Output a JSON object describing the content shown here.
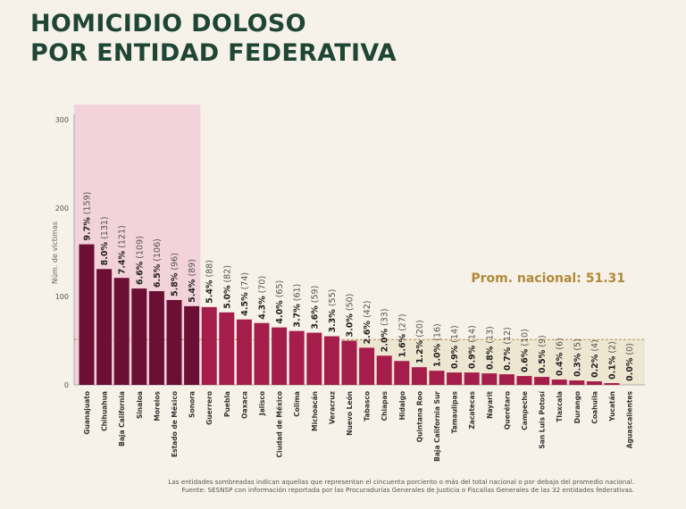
{
  "title_lines": [
    "HOMICIDIO DOLOSO",
    "POR ENTIDAD FEDERATIVA"
  ],
  "footnote": "Las entidades sombreadas indican aquellas que representan el cincuenta porciento o más del total nacional o por debajo del promedio nacional.",
  "source": "Fuente: SESNSP con información reportada por las Procuradurías Generales de Justicia o Fiscalías Generales de las 32 entidades federativas.",
  "colors": {
    "title": "#1f4534",
    "top_bars": "#6b0f35",
    "other_bars": "#a51d4a",
    "highlight_top": "#f2d3d9",
    "highlight_low": "#ede6d1",
    "average": "#b08a3a"
  },
  "chart_data": {
    "type": "bar",
    "ylabel": "Núm. de víctimas",
    "ylim": [
      0,
      300
    ],
    "yticks": [
      0,
      100,
      200,
      300
    ],
    "grid": false,
    "average": {
      "label": "Prom. nacional: 51.31",
      "value": 51.31
    },
    "highlighted_top_count": 7,
    "categories": [
      "Guanajuato",
      "Chihuahua",
      "Baja California",
      "Sinaloa",
      "Morelos",
      "Estado de México",
      "Sonora",
      "Guerrero",
      "Puebla",
      "Oaxaca",
      "Jalisco",
      "Ciudad de México",
      "Colima",
      "Michoacán",
      "Veracruz",
      "Nuevo León",
      "Tabasco",
      "Chiapas",
      "Hidalgo",
      "Quintana Roo",
      "Baja California Sur",
      "Tamaulipas",
      "Zacatecas",
      "Nayarit",
      "Querétaro",
      "Campeche",
      "San Luis Potosí",
      "Tlaxcala",
      "Durango",
      "Coahuila",
      "Yucatán",
      "Aguascalientes"
    ],
    "values": [
      159,
      131,
      121,
      109,
      106,
      96,
      89,
      88,
      82,
      74,
      70,
      65,
      61,
      59,
      55,
      50,
      42,
      33,
      27,
      20,
      16,
      14,
      14,
      13,
      12,
      10,
      9,
      6,
      5,
      4,
      2,
      0
    ],
    "percent_labels": [
      "9.7%",
      "8.0%",
      "7.4%",
      "6.6%",
      "6.5%",
      "5.8%",
      "5.4%",
      "5.4%",
      "5.0%",
      "4.5%",
      "4.3%",
      "4.0%",
      "3.7%",
      "3.6%",
      "3.3%",
      "3.0%",
      "2.6%",
      "2.0%",
      "1.6%",
      "1.2%",
      "1.0%",
      "0.9%",
      "0.9%",
      "0.8%",
      "0.7%",
      "0.6%",
      "0.5%",
      "0.4%",
      "0.3%",
      "0.2%",
      "0.1%",
      "0.0%"
    ]
  }
}
